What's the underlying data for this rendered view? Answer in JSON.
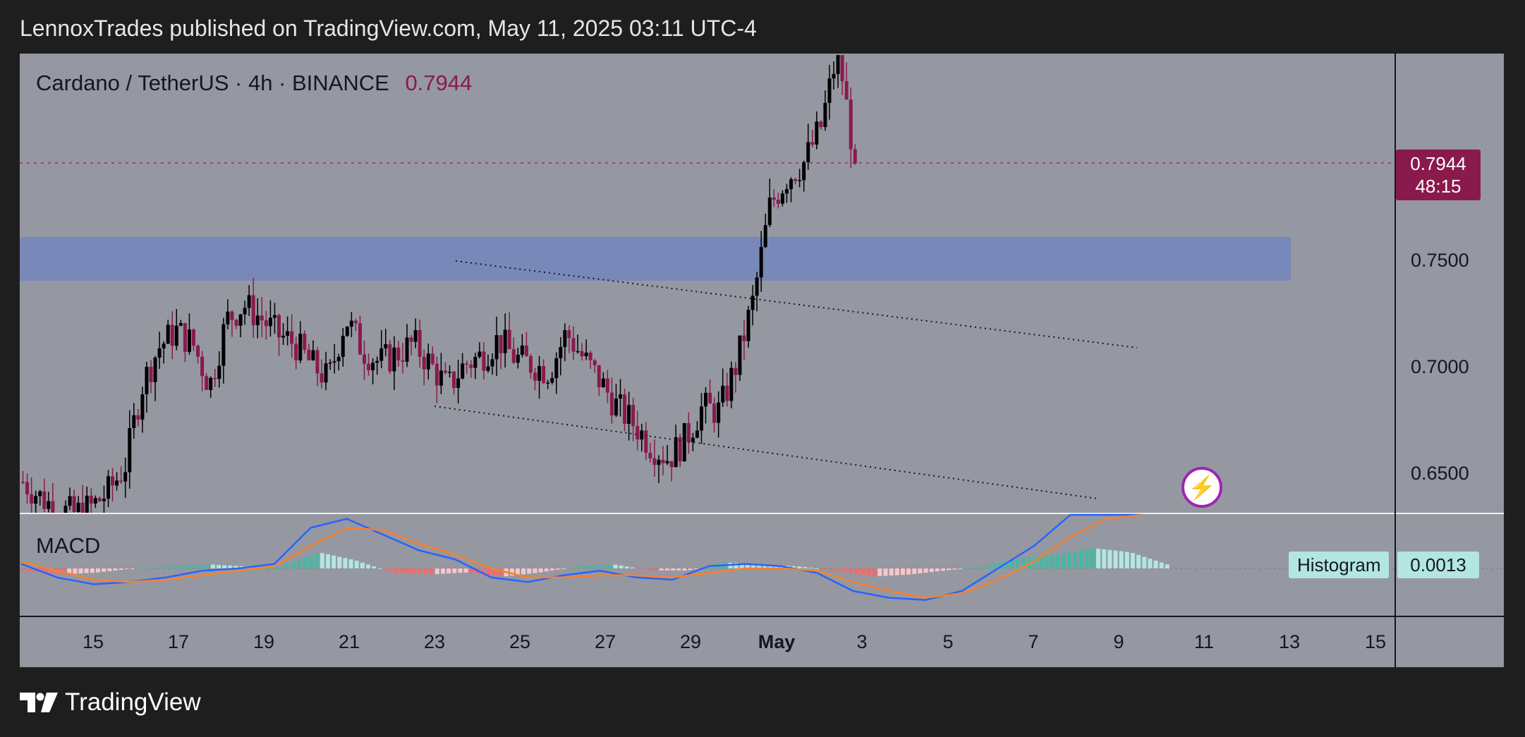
{
  "header": {
    "published": "LennoxTrades published on TradingView.com, May 11, 2025 03:11 UTC-4"
  },
  "symbol": {
    "title": "Cardano / TetherUS · 4h · BINANCE",
    "price": "0.7944"
  },
  "price_tag": {
    "price": "0.7944",
    "countdown": "48:15"
  },
  "y_axis_labels": [
    "0.7500",
    "0.7000",
    "0.6500"
  ],
  "macd": {
    "label": "MACD",
    "histogram_tag": "Histogram",
    "histogram_value": "0.0013"
  },
  "footer": {
    "brand": "TradingView"
  },
  "colors": {
    "background": "#1e1e1e",
    "pane": "#9598a1",
    "bull_candle": "#000000",
    "bear_candle": "#8a1a4c",
    "zone": "#7888b8",
    "macd_line": "#2962ff",
    "signal_line": "#f7812f",
    "hist_pos_strong": "#4cb5a4",
    "hist_pos_weak": "#b2e6df",
    "hist_neg_strong": "#f26b6b",
    "hist_neg_weak": "#fbc6c9"
  },
  "chart_data": {
    "type": "candlestick",
    "title": "Cardano / TetherUS · 4h · BINANCE",
    "x_tick_labels": [
      "15",
      "17",
      "19",
      "21",
      "23",
      "25",
      "27",
      "29",
      "May",
      "3",
      "5",
      "7",
      "9",
      "11",
      "13",
      "15"
    ],
    "y_tick_labels": [
      "0.7500",
      "0.7000",
      "0.6500"
    ],
    "ylim": [
      0.628,
      0.858
    ],
    "last_price": 0.7944,
    "resistance_zone": [
      0.74,
      0.76
    ],
    "channel_upper": [
      [
        0.747,
        0.708
      ]
    ],
    "channel_lower": [
      [
        0.681,
        0.641
      ]
    ],
    "series": [
      {
        "name": "price_path",
        "values": [
          0.645,
          0.638,
          0.632,
          0.63,
          0.633,
          0.64,
          0.652,
          0.69,
          0.708,
          0.716,
          0.71,
          0.69,
          0.721,
          0.728,
          0.722,
          0.714,
          0.71,
          0.7,
          0.693,
          0.722,
          0.707,
          0.701,
          0.705,
          0.71,
          0.7,
          0.689,
          0.7,
          0.704,
          0.712,
          0.703,
          0.7,
          0.697,
          0.715,
          0.703,
          0.692,
          0.68,
          0.672,
          0.662,
          0.656,
          0.665,
          0.68,
          0.678,
          0.7,
          0.73,
          0.775,
          0.788,
          0.795,
          0.812,
          0.848,
          0.794
        ]
      },
      {
        "name": "MACD",
        "values": [
          0.002,
          -0.004,
          -0.007,
          -0.006,
          -0.004,
          -0.001,
          0.0,
          0.002,
          0.018,
          0.022,
          0.015,
          0.008,
          0.004,
          -0.004,
          -0.006,
          -0.003,
          -0.001,
          -0.004,
          -0.005,
          0.001,
          0.002,
          0.001,
          -0.002,
          -0.01,
          -0.013,
          -0.014,
          -0.01,
          0.0,
          0.01,
          0.024,
          0.03,
          0.028
        ]
      },
      {
        "name": "Signal",
        "values": [
          0.003,
          -0.001,
          -0.005,
          -0.006,
          -0.005,
          -0.003,
          -0.001,
          0.001,
          0.01,
          0.018,
          0.017,
          0.011,
          0.006,
          0.0,
          -0.004,
          -0.004,
          -0.003,
          -0.003,
          -0.004,
          -0.002,
          0.0,
          0.0,
          -0.001,
          -0.006,
          -0.01,
          -0.013,
          -0.011,
          -0.005,
          0.003,
          0.014,
          0.022,
          0.026
        ]
      }
    ]
  }
}
